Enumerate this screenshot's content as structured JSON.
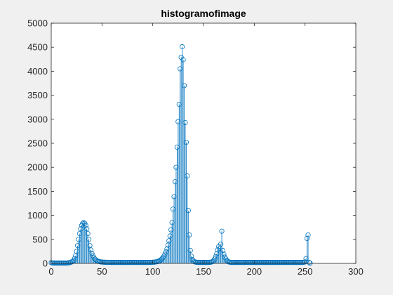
{
  "chart_data": {
    "type": "stem",
    "title": "histogramofimage",
    "xlabel": "",
    "ylabel": "",
    "xlim": [
      0,
      300
    ],
    "ylim": [
      0,
      5000
    ],
    "x_ticks": [
      0,
      50,
      100,
      150,
      200,
      250,
      300
    ],
    "y_ticks": [
      0,
      500,
      1000,
      1500,
      2000,
      2500,
      3000,
      3500,
      4000,
      4500,
      5000
    ],
    "grid": false,
    "legend": "none",
    "series_color": "#0072BD",
    "axes_color": "#262626",
    "points": [
      {
        "x": 0,
        "y": 15
      },
      {
        "x": 1,
        "y": 10
      },
      {
        "x": 2,
        "y": 8
      },
      {
        "x": 3,
        "y": 8
      },
      {
        "x": 4,
        "y": 8
      },
      {
        "x": 5,
        "y": 8
      },
      {
        "x": 6,
        "y": 8
      },
      {
        "x": 7,
        "y": 8
      },
      {
        "x": 8,
        "y": 8
      },
      {
        "x": 9,
        "y": 8
      },
      {
        "x": 10,
        "y": 8
      },
      {
        "x": 11,
        "y": 8
      },
      {
        "x": 12,
        "y": 8
      },
      {
        "x": 13,
        "y": 8
      },
      {
        "x": 14,
        "y": 8
      },
      {
        "x": 15,
        "y": 8
      },
      {
        "x": 16,
        "y": 10
      },
      {
        "x": 17,
        "y": 12
      },
      {
        "x": 18,
        "y": 15
      },
      {
        "x": 19,
        "y": 20
      },
      {
        "x": 20,
        "y": 30
      },
      {
        "x": 21,
        "y": 40
      },
      {
        "x": 22,
        "y": 60
      },
      {
        "x": 23,
        "y": 100
      },
      {
        "x": 24,
        "y": 160
      },
      {
        "x": 25,
        "y": 250
      },
      {
        "x": 26,
        "y": 370
      },
      {
        "x": 27,
        "y": 500
      },
      {
        "x": 28,
        "y": 620
      },
      {
        "x": 29,
        "y": 720
      },
      {
        "x": 30,
        "y": 790
      },
      {
        "x": 31,
        "y": 830
      },
      {
        "x": 32,
        "y": 850
      },
      {
        "x": 33,
        "y": 830
      },
      {
        "x": 34,
        "y": 790
      },
      {
        "x": 35,
        "y": 720
      },
      {
        "x": 36,
        "y": 620
      },
      {
        "x": 37,
        "y": 500
      },
      {
        "x": 38,
        "y": 370
      },
      {
        "x": 39,
        "y": 280
      },
      {
        "x": 40,
        "y": 210
      },
      {
        "x": 41,
        "y": 160
      },
      {
        "x": 42,
        "y": 120
      },
      {
        "x": 43,
        "y": 90
      },
      {
        "x": 44,
        "y": 70
      },
      {
        "x": 45,
        "y": 55
      },
      {
        "x": 46,
        "y": 45
      },
      {
        "x": 47,
        "y": 40
      },
      {
        "x": 48,
        "y": 35
      },
      {
        "x": 49,
        "y": 30
      },
      {
        "x": 50,
        "y": 28
      },
      {
        "x": 51,
        "y": 26
      },
      {
        "x": 52,
        "y": 25
      },
      {
        "x": 53,
        "y": 24
      },
      {
        "x": 54,
        "y": 23
      },
      {
        "x": 55,
        "y": 22
      },
      {
        "x": 56,
        "y": 22
      },
      {
        "x": 57,
        "y": 21
      },
      {
        "x": 58,
        "y": 21
      },
      {
        "x": 59,
        "y": 20
      },
      {
        "x": 60,
        "y": 20
      },
      {
        "x": 61,
        "y": 20
      },
      {
        "x": 62,
        "y": 20
      },
      {
        "x": 63,
        "y": 20
      },
      {
        "x": 64,
        "y": 20
      },
      {
        "x": 65,
        "y": 20
      },
      {
        "x": 66,
        "y": 20
      },
      {
        "x": 67,
        "y": 20
      },
      {
        "x": 68,
        "y": 20
      },
      {
        "x": 69,
        "y": 20
      },
      {
        "x": 70,
        "y": 20
      },
      {
        "x": 71,
        "y": 20
      },
      {
        "x": 72,
        "y": 20
      },
      {
        "x": 73,
        "y": 20
      },
      {
        "x": 74,
        "y": 20
      },
      {
        "x": 75,
        "y": 20
      },
      {
        "x": 76,
        "y": 20
      },
      {
        "x": 77,
        "y": 20
      },
      {
        "x": 78,
        "y": 20
      },
      {
        "x": 79,
        "y": 20
      },
      {
        "x": 80,
        "y": 20
      },
      {
        "x": 81,
        "y": 20
      },
      {
        "x": 82,
        "y": 20
      },
      {
        "x": 83,
        "y": 20
      },
      {
        "x": 84,
        "y": 20
      },
      {
        "x": 85,
        "y": 20
      },
      {
        "x": 86,
        "y": 20
      },
      {
        "x": 87,
        "y": 20
      },
      {
        "x": 88,
        "y": 20
      },
      {
        "x": 89,
        "y": 20
      },
      {
        "x": 90,
        "y": 20
      },
      {
        "x": 91,
        "y": 20
      },
      {
        "x": 92,
        "y": 20
      },
      {
        "x": 93,
        "y": 20
      },
      {
        "x": 94,
        "y": 20
      },
      {
        "x": 95,
        "y": 20
      },
      {
        "x": 96,
        "y": 20
      },
      {
        "x": 97,
        "y": 20
      },
      {
        "x": 98,
        "y": 22
      },
      {
        "x": 99,
        "y": 22
      },
      {
        "x": 100,
        "y": 25
      },
      {
        "x": 101,
        "y": 25
      },
      {
        "x": 102,
        "y": 28
      },
      {
        "x": 103,
        "y": 30
      },
      {
        "x": 104,
        "y": 35
      },
      {
        "x": 105,
        "y": 40
      },
      {
        "x": 106,
        "y": 50
      },
      {
        "x": 107,
        "y": 60
      },
      {
        "x": 108,
        "y": 75
      },
      {
        "x": 109,
        "y": 95
      },
      {
        "x": 110,
        "y": 120
      },
      {
        "x": 111,
        "y": 150
      },
      {
        "x": 112,
        "y": 190
      },
      {
        "x": 113,
        "y": 240
      },
      {
        "x": 114,
        "y": 300
      },
      {
        "x": 115,
        "y": 380
      },
      {
        "x": 116,
        "y": 470
      },
      {
        "x": 117,
        "y": 570
      },
      {
        "x": 118,
        "y": 700
      },
      {
        "x": 119,
        "y": 850
      },
      {
        "x": 120,
        "y": 1130
      },
      {
        "x": 121,
        "y": 1390
      },
      {
        "x": 122,
        "y": 1700
      },
      {
        "x": 123,
        "y": 2000
      },
      {
        "x": 124,
        "y": 2420
      },
      {
        "x": 125,
        "y": 2950
      },
      {
        "x": 126,
        "y": 3310
      },
      {
        "x": 127,
        "y": 4050
      },
      {
        "x": 128,
        "y": 4290
      },
      {
        "x": 129,
        "y": 4510
      },
      {
        "x": 130,
        "y": 4240
      },
      {
        "x": 131,
        "y": 3700
      },
      {
        "x": 132,
        "y": 2930
      },
      {
        "x": 133,
        "y": 2520
      },
      {
        "x": 134,
        "y": 1820
      },
      {
        "x": 135,
        "y": 1100
      },
      {
        "x": 136,
        "y": 590
      },
      {
        "x": 137,
        "y": 270
      },
      {
        "x": 138,
        "y": 150
      },
      {
        "x": 139,
        "y": 80
      },
      {
        "x": 140,
        "y": 50
      },
      {
        "x": 141,
        "y": 35
      },
      {
        "x": 142,
        "y": 28
      },
      {
        "x": 143,
        "y": 24
      },
      {
        "x": 144,
        "y": 22
      },
      {
        "x": 145,
        "y": 20
      },
      {
        "x": 146,
        "y": 20
      },
      {
        "x": 147,
        "y": 20
      },
      {
        "x": 148,
        "y": 20
      },
      {
        "x": 149,
        "y": 20
      },
      {
        "x": 150,
        "y": 20
      },
      {
        "x": 151,
        "y": 20
      },
      {
        "x": 152,
        "y": 20
      },
      {
        "x": 153,
        "y": 20
      },
      {
        "x": 154,
        "y": 20
      },
      {
        "x": 155,
        "y": 20
      },
      {
        "x": 156,
        "y": 22
      },
      {
        "x": 157,
        "y": 25
      },
      {
        "x": 158,
        "y": 30
      },
      {
        "x": 159,
        "y": 40
      },
      {
        "x": 160,
        "y": 60
      },
      {
        "x": 161,
        "y": 90
      },
      {
        "x": 162,
        "y": 140
      },
      {
        "x": 163,
        "y": 200
      },
      {
        "x": 164,
        "y": 280
      },
      {
        "x": 165,
        "y": 350
      },
      {
        "x": 166,
        "y": 310
      },
      {
        "x": 167,
        "y": 400
      },
      {
        "x": 168,
        "y": 670
      },
      {
        "x": 169,
        "y": 270
      },
      {
        "x": 170,
        "y": 190
      },
      {
        "x": 171,
        "y": 130
      },
      {
        "x": 172,
        "y": 90
      },
      {
        "x": 173,
        "y": 60
      },
      {
        "x": 174,
        "y": 40
      },
      {
        "x": 175,
        "y": 30
      },
      {
        "x": 176,
        "y": 25
      },
      {
        "x": 177,
        "y": 22
      },
      {
        "x": 178,
        "y": 20
      },
      {
        "x": 179,
        "y": 20
      },
      {
        "x": 180,
        "y": 20
      },
      {
        "x": 181,
        "y": 20
      },
      {
        "x": 182,
        "y": 20
      },
      {
        "x": 183,
        "y": 20
      },
      {
        "x": 184,
        "y": 20
      },
      {
        "x": 185,
        "y": 20
      },
      {
        "x": 186,
        "y": 20
      },
      {
        "x": 187,
        "y": 20
      },
      {
        "x": 188,
        "y": 20
      },
      {
        "x": 189,
        "y": 20
      },
      {
        "x": 190,
        "y": 20
      },
      {
        "x": 191,
        "y": 20
      },
      {
        "x": 192,
        "y": 20
      },
      {
        "x": 193,
        "y": 20
      },
      {
        "x": 194,
        "y": 20
      },
      {
        "x": 195,
        "y": 20
      },
      {
        "x": 196,
        "y": 20
      },
      {
        "x": 197,
        "y": 20
      },
      {
        "x": 198,
        "y": 20
      },
      {
        "x": 199,
        "y": 20
      },
      {
        "x": 200,
        "y": 20
      },
      {
        "x": 201,
        "y": 20
      },
      {
        "x": 202,
        "y": 20
      },
      {
        "x": 203,
        "y": 20
      },
      {
        "x": 204,
        "y": 20
      },
      {
        "x": 205,
        "y": 20
      },
      {
        "x": 206,
        "y": 20
      },
      {
        "x": 207,
        "y": 20
      },
      {
        "x": 208,
        "y": 20
      },
      {
        "x": 209,
        "y": 20
      },
      {
        "x": 210,
        "y": 20
      },
      {
        "x": 211,
        "y": 20
      },
      {
        "x": 212,
        "y": 20
      },
      {
        "x": 213,
        "y": 20
      },
      {
        "x": 214,
        "y": 20
      },
      {
        "x": 215,
        "y": 20
      },
      {
        "x": 216,
        "y": 20
      },
      {
        "x": 217,
        "y": 20
      },
      {
        "x": 218,
        "y": 20
      },
      {
        "x": 219,
        "y": 20
      },
      {
        "x": 220,
        "y": 20
      },
      {
        "x": 221,
        "y": 20
      },
      {
        "x": 222,
        "y": 20
      },
      {
        "x": 223,
        "y": 20
      },
      {
        "x": 224,
        "y": 20
      },
      {
        "x": 225,
        "y": 20
      },
      {
        "x": 226,
        "y": 20
      },
      {
        "x": 227,
        "y": 20
      },
      {
        "x": 228,
        "y": 20
      },
      {
        "x": 229,
        "y": 20
      },
      {
        "x": 230,
        "y": 20
      },
      {
        "x": 231,
        "y": 20
      },
      {
        "x": 232,
        "y": 20
      },
      {
        "x": 233,
        "y": 20
      },
      {
        "x": 234,
        "y": 20
      },
      {
        "x": 235,
        "y": 20
      },
      {
        "x": 236,
        "y": 20
      },
      {
        "x": 237,
        "y": 20
      },
      {
        "x": 238,
        "y": 20
      },
      {
        "x": 239,
        "y": 20
      },
      {
        "x": 240,
        "y": 20
      },
      {
        "x": 241,
        "y": 20
      },
      {
        "x": 242,
        "y": 20
      },
      {
        "x": 243,
        "y": 20
      },
      {
        "x": 244,
        "y": 20
      },
      {
        "x": 245,
        "y": 20
      },
      {
        "x": 246,
        "y": 20
      },
      {
        "x": 247,
        "y": 20
      },
      {
        "x": 248,
        "y": 22
      },
      {
        "x": 249,
        "y": 25
      },
      {
        "x": 250,
        "y": 30
      },
      {
        "x": 251,
        "y": 100
      },
      {
        "x": 252,
        "y": 520
      },
      {
        "x": 253,
        "y": 590
      },
      {
        "x": 254,
        "y": 20
      },
      {
        "x": 255,
        "y": 5
      }
    ]
  }
}
